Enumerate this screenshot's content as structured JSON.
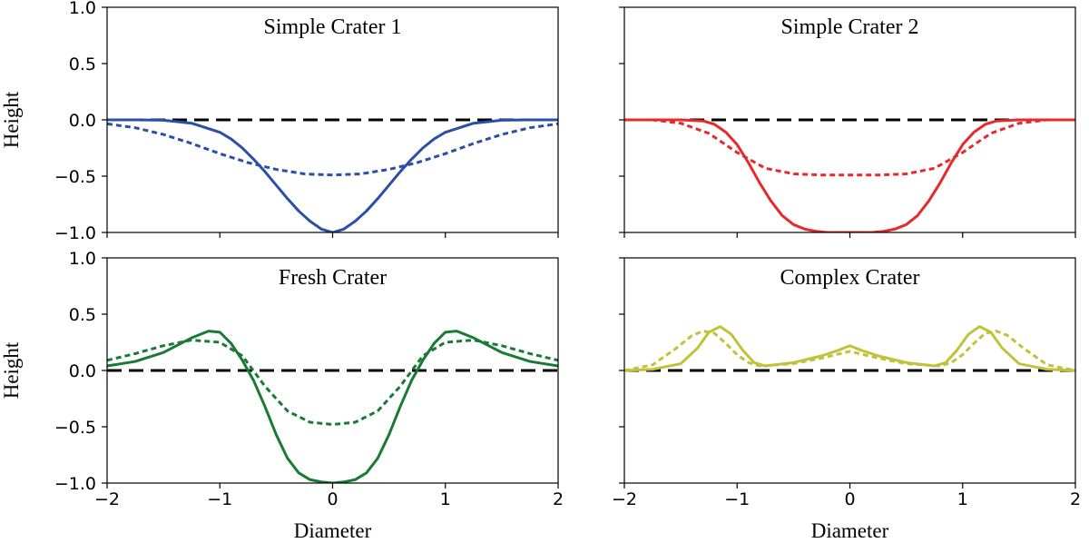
{
  "figure": {
    "ylabel": "Height",
    "xlabel": "Diameter",
    "baseline_color": "#000000"
  },
  "chart_data": [
    {
      "type": "line",
      "title": "Simple Crater 1",
      "xlabel": "",
      "ylabel": "Height",
      "xlim": [
        -2,
        2
      ],
      "ylim": [
        -1,
        1
      ],
      "xticks": [
        -2,
        -1,
        0,
        1,
        2
      ],
      "yticks": [
        -1.0,
        -0.5,
        0.0,
        0.5,
        1.0
      ],
      "xtick_labels": [
        "",
        "",
        "",
        "",
        ""
      ],
      "ytick_labels": [
        "−1.0",
        "−0.5",
        "0.0",
        "0.5",
        "1.0"
      ],
      "baseline_y": 0,
      "grid": false,
      "series": [
        {
          "style": "solid",
          "color": "#2a4fa5",
          "x": [
            -2.0,
            -1.75,
            -1.5,
            -1.25,
            -1.0,
            -0.9,
            -0.8,
            -0.7,
            -0.6,
            -0.5,
            -0.4,
            -0.3,
            -0.2,
            -0.1,
            0.0,
            0.1,
            0.2,
            0.3,
            0.4,
            0.5,
            0.6,
            0.7,
            0.8,
            0.9,
            1.0,
            1.25,
            1.5,
            1.75,
            2.0
          ],
          "y": [
            0.0,
            0.0,
            -0.003,
            -0.03,
            -0.11,
            -0.17,
            -0.25,
            -0.35,
            -0.46,
            -0.58,
            -0.7,
            -0.81,
            -0.9,
            -0.97,
            -1.0,
            -0.97,
            -0.9,
            -0.81,
            -0.7,
            -0.58,
            -0.46,
            -0.35,
            -0.25,
            -0.17,
            -0.11,
            -0.03,
            -0.003,
            0.0,
            0.0
          ]
        },
        {
          "style": "dotted",
          "color": "#2a4fa5",
          "x": [
            -2.0,
            -1.75,
            -1.5,
            -1.25,
            -1.0,
            -0.75,
            -0.5,
            -0.25,
            0.0,
            0.25,
            0.5,
            0.75,
            1.0,
            1.25,
            1.5,
            1.75,
            2.0
          ],
          "y": [
            -0.035,
            -0.07,
            -0.13,
            -0.21,
            -0.3,
            -0.38,
            -0.44,
            -0.48,
            -0.49,
            -0.48,
            -0.44,
            -0.38,
            -0.3,
            -0.21,
            -0.13,
            -0.07,
            -0.035
          ]
        }
      ]
    },
    {
      "type": "line",
      "title": "Simple Crater 2",
      "xlabel": "",
      "ylabel": "",
      "xlim": [
        -2,
        2
      ],
      "ylim": [
        -1,
        1
      ],
      "xticks": [
        -2,
        -1,
        0,
        1,
        2
      ],
      "yticks": [
        -1.0,
        -0.5,
        0.0,
        0.5,
        1.0
      ],
      "xtick_labels": [
        "",
        "",
        "",
        "",
        ""
      ],
      "ytick_labels": [
        "",
        "",
        "",
        "",
        ""
      ],
      "baseline_y": 0,
      "grid": false,
      "series": [
        {
          "style": "solid",
          "color": "#e8292b",
          "x": [
            -2.0,
            -1.5,
            -1.3,
            -1.2,
            -1.1,
            -1.0,
            -0.9,
            -0.8,
            -0.7,
            -0.6,
            -0.5,
            -0.4,
            -0.3,
            -0.2,
            0.0,
            0.2,
            0.3,
            0.4,
            0.5,
            0.6,
            0.7,
            0.8,
            0.9,
            1.0,
            1.1,
            1.2,
            1.3,
            1.5,
            2.0
          ],
          "y": [
            0.0,
            0.0,
            -0.01,
            -0.04,
            -0.11,
            -0.22,
            -0.38,
            -0.56,
            -0.72,
            -0.85,
            -0.93,
            -0.97,
            -0.99,
            -1.0,
            -1.0,
            -1.0,
            -0.99,
            -0.97,
            -0.93,
            -0.85,
            -0.72,
            -0.56,
            -0.38,
            -0.22,
            -0.11,
            -0.04,
            -0.01,
            0.0,
            0.0
          ]
        },
        {
          "style": "dotted",
          "color": "#e8292b",
          "x": [
            -2.0,
            -1.75,
            -1.5,
            -1.25,
            -1.0,
            -0.75,
            -0.5,
            -0.25,
            0.0,
            0.25,
            0.5,
            0.75,
            1.0,
            1.25,
            1.5,
            1.75,
            2.0
          ],
          "y": [
            0.0,
            0.0,
            -0.03,
            -0.12,
            -0.29,
            -0.43,
            -0.48,
            -0.49,
            -0.49,
            -0.49,
            -0.48,
            -0.43,
            -0.29,
            -0.12,
            -0.03,
            0.0,
            0.0
          ]
        }
      ]
    },
    {
      "type": "line",
      "title": "Fresh Crater",
      "xlabel": "Diameter",
      "ylabel": "Height",
      "xlim": [
        -2,
        2
      ],
      "ylim": [
        -1,
        1
      ],
      "xticks": [
        -2,
        -1,
        0,
        1,
        2
      ],
      "yticks": [
        -1.0,
        -0.5,
        0.0,
        0.5,
        1.0
      ],
      "xtick_labels": [
        "−2",
        "−1",
        "0",
        "1",
        "2"
      ],
      "ytick_labels": [
        "−1.0",
        "−0.5",
        "0.0",
        "0.5",
        "1.0"
      ],
      "baseline_y": 0,
      "grid": false,
      "series": [
        {
          "style": "solid",
          "color": "#1a7a35",
          "x": [
            -2.0,
            -1.75,
            -1.5,
            -1.25,
            -1.1,
            -1.0,
            -0.9,
            -0.8,
            -0.7,
            -0.6,
            -0.5,
            -0.4,
            -0.3,
            -0.2,
            -0.1,
            0.0,
            0.1,
            0.2,
            0.3,
            0.4,
            0.5,
            0.6,
            0.7,
            0.8,
            0.9,
            1.0,
            1.1,
            1.25,
            1.5,
            1.75,
            2.0
          ],
          "y": [
            0.04,
            0.08,
            0.16,
            0.29,
            0.35,
            0.34,
            0.24,
            0.09,
            -0.09,
            -0.32,
            -0.57,
            -0.78,
            -0.91,
            -0.97,
            -0.99,
            -1.0,
            -0.99,
            -0.97,
            -0.91,
            -0.78,
            -0.57,
            -0.32,
            -0.09,
            0.09,
            0.24,
            0.34,
            0.35,
            0.29,
            0.16,
            0.08,
            0.04
          ]
        },
        {
          "style": "dotted",
          "color": "#1a7a35",
          "x": [
            -2.0,
            -1.75,
            -1.5,
            -1.25,
            -1.0,
            -0.8,
            -0.6,
            -0.4,
            -0.2,
            0.0,
            0.2,
            0.4,
            0.6,
            0.8,
            1.0,
            1.25,
            1.5,
            1.75,
            2.0
          ],
          "y": [
            0.09,
            0.15,
            0.22,
            0.27,
            0.25,
            0.13,
            -0.14,
            -0.36,
            -0.46,
            -0.48,
            -0.46,
            -0.36,
            -0.14,
            0.13,
            0.25,
            0.27,
            0.22,
            0.15,
            0.09
          ]
        }
      ]
    },
    {
      "type": "line",
      "title": "Complex Crater",
      "xlabel": "Diameter",
      "ylabel": "",
      "xlim": [
        -2,
        2
      ],
      "ylim": [
        -1,
        1
      ],
      "xticks": [
        -2,
        -1,
        0,
        1,
        2
      ],
      "yticks": [
        -1.0,
        -0.5,
        0.0,
        0.5,
        1.0
      ],
      "xtick_labels": [
        "−2",
        "−1",
        "0",
        "1",
        "2"
      ],
      "ytick_labels": [
        "",
        "",
        "",
        "",
        ""
      ],
      "baseline_y": 0,
      "grid": false,
      "series": [
        {
          "style": "solid",
          "color": "#c2c23a",
          "x": [
            -2.0,
            -1.75,
            -1.5,
            -1.35,
            -1.25,
            -1.15,
            -1.05,
            -0.95,
            -0.85,
            -0.75,
            -0.5,
            -0.25,
            -0.1,
            0.0,
            0.1,
            0.25,
            0.5,
            0.75,
            0.85,
            0.95,
            1.05,
            1.15,
            1.25,
            1.35,
            1.5,
            1.75,
            2.0
          ],
          "y": [
            0.0,
            0.01,
            0.06,
            0.2,
            0.34,
            0.39,
            0.32,
            0.18,
            0.07,
            0.04,
            0.07,
            0.13,
            0.18,
            0.22,
            0.18,
            0.13,
            0.07,
            0.04,
            0.07,
            0.18,
            0.32,
            0.39,
            0.34,
            0.2,
            0.06,
            0.01,
            0.0
          ]
        },
        {
          "style": "dotted",
          "color": "#c2c23a",
          "x": [
            -2.0,
            -1.75,
            -1.55,
            -1.4,
            -1.3,
            -1.2,
            -1.1,
            -1.0,
            -0.9,
            -0.8,
            -0.5,
            -0.25,
            0.0,
            0.25,
            0.5,
            0.8,
            0.9,
            1.0,
            1.1,
            1.2,
            1.3,
            1.4,
            1.55,
            1.75,
            2.0
          ],
          "y": [
            0.0,
            0.05,
            0.19,
            0.31,
            0.35,
            0.33,
            0.24,
            0.14,
            0.07,
            0.04,
            0.06,
            0.11,
            0.17,
            0.11,
            0.06,
            0.04,
            0.07,
            0.14,
            0.24,
            0.33,
            0.35,
            0.31,
            0.19,
            0.05,
            0.0
          ]
        }
      ]
    }
  ]
}
